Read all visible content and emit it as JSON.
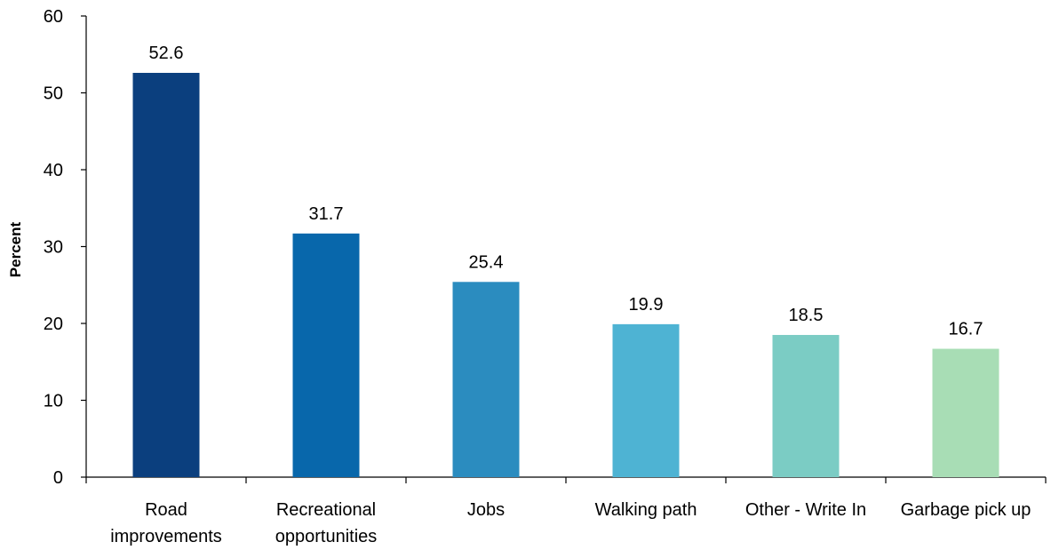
{
  "chart_data": {
    "type": "bar",
    "title": "",
    "xlabel": "",
    "ylabel": "Percent",
    "ylim": [
      0,
      60
    ],
    "yticks": [
      0,
      10,
      20,
      30,
      40,
      50,
      60
    ],
    "grid": false,
    "categories": [
      [
        "Road",
        "improvements"
      ],
      [
        "Recreational",
        "opportunities"
      ],
      [
        "Jobs"
      ],
      [
        "Walking path"
      ],
      [
        "Other - Write In"
      ],
      [
        "Garbage pick up"
      ]
    ],
    "values": [
      52.6,
      31.7,
      25.4,
      19.9,
      18.5,
      16.7
    ],
    "data_labels": [
      "52.6",
      "31.7",
      "25.4",
      "19.9",
      "18.5",
      "16.7"
    ],
    "colors": [
      "#0b3f7e",
      "#0867ab",
      "#2b8cbf",
      "#4eb3d3",
      "#7bccc4",
      "#a8ddb5"
    ]
  }
}
